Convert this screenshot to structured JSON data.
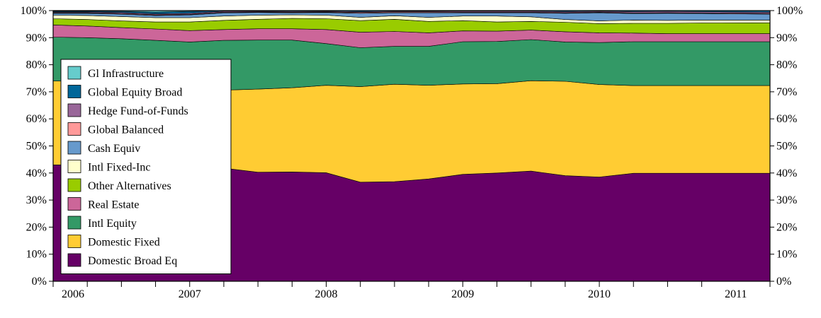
{
  "chart_data": {
    "type": "area",
    "stacked": true,
    "x": [
      2006.0,
      2006.25,
      2006.5,
      2006.75,
      2007.0,
      2007.25,
      2007.5,
      2007.75,
      2008.0,
      2008.25,
      2008.5,
      2008.75,
      2009.0,
      2009.25,
      2009.5,
      2009.75,
      2010.0,
      2010.25,
      2010.5,
      2010.75,
      2011.0
    ],
    "x_ticks": [
      "2006",
      "2007",
      "2008",
      "2009",
      "2010",
      "2011"
    ],
    "ylim": [
      0,
      100
    ],
    "y_ticks": [
      "0%",
      "10%",
      "20%",
      "30%",
      "40%",
      "50%",
      "60%",
      "70%",
      "80%",
      "90%",
      "100%"
    ],
    "y_axis_both_sides": true,
    "legend_position": "left",
    "series": [
      {
        "name": "Domestic Broad Eq",
        "color": "#660066",
        "values": [
          43,
          43,
          42.7,
          42.5,
          42.3,
          41.8,
          40.3,
          40.4,
          40.1,
          36.6,
          36.8,
          37.8,
          39.5,
          40.0,
          40.7,
          39.0,
          38.5,
          39.9,
          39.9,
          39.9,
          39.9
        ]
      },
      {
        "name": "Domestic Fixed",
        "color": "#FFCC33",
        "values": [
          31,
          30.8,
          30.7,
          30.3,
          29.8,
          28.8,
          30.7,
          31.1,
          32.3,
          35.3,
          36.0,
          34.6,
          33.4,
          33.0,
          33.4,
          34.9,
          34.2,
          32.4,
          32.4,
          32.4,
          32.4
        ]
      },
      {
        "name": "Intl Equity",
        "color": "#339966",
        "values": [
          16.2,
          16.2,
          16.2,
          16.2,
          16.3,
          18.4,
          18.1,
          17.6,
          15.4,
          14.4,
          14.0,
          14.4,
          15.6,
          15.6,
          15.2,
          14.5,
          15.5,
          16.2,
          16.2,
          16.2,
          16.2
        ]
      },
      {
        "name": "Real Estate",
        "color": "#CC6699",
        "values": [
          4.5,
          4.3,
          4.1,
          4.2,
          4.2,
          4.0,
          4.2,
          4.2,
          5.2,
          5.7,
          5.5,
          5.0,
          4.0,
          3.8,
          3.5,
          3.8,
          3.6,
          3.2,
          3.0,
          3.0,
          3.0
        ]
      },
      {
        "name": "Other Alternatives",
        "color": "#99CC00",
        "values": [
          2.3,
          2.4,
          2.5,
          2.6,
          3.2,
          3.4,
          3.5,
          3.8,
          4.0,
          4.3,
          4.5,
          4.2,
          3.8,
          3.4,
          3.2,
          3.5,
          3.4,
          3.6,
          3.8,
          3.9,
          4.0
        ]
      },
      {
        "name": "Intl Fixed-Inc",
        "color": "#FFFFCC",
        "values": [
          1.3,
          1.5,
          1.6,
          1.6,
          1.6,
          1.6,
          1.5,
          1.3,
          1.3,
          1.2,
          1.3,
          1.5,
          1.7,
          2.2,
          1.7,
          1.0,
          1.0,
          1.2,
          1.1,
          1.1,
          1.0
        ]
      },
      {
        "name": "Cash Equiv",
        "color": "#6699CC",
        "values": [
          0.7,
          0.8,
          0.9,
          0.8,
          1.0,
          1.2,
          1.0,
          0.8,
          1.0,
          1.5,
          1.1,
          1.7,
          1.2,
          1.2,
          1.5,
          2.3,
          3.0,
          2.4,
          2.6,
          2.4,
          2.2
        ]
      },
      {
        "name": "Global Balanced",
        "color": "#FF9999",
        "values": [
          0.2,
          0.2,
          0.2,
          0.2,
          0.2,
          0.2,
          0.2,
          0.2,
          0.2,
          0.3,
          0.3,
          0.3,
          0.2,
          0.2,
          0.2,
          0.2,
          0.2,
          0.2,
          0.2,
          0.2,
          0.2
        ]
      },
      {
        "name": "Hedge Fund-of-Funds",
        "color": "#996699",
        "values": [
          0.3,
          0.3,
          0.4,
          0.4,
          0.4,
          0.4,
          0.3,
          0.3,
          0.3,
          0.3,
          0.3,
          0.3,
          0.4,
          0.4,
          0.4,
          0.4,
          0.4,
          0.5,
          0.5,
          0.5,
          0.5
        ]
      },
      {
        "name": "Global Equity Broad",
        "color": "#006699",
        "values": [
          0.3,
          0.3,
          0.4,
          0.6,
          0.7,
          0.6,
          0.6,
          0.6,
          0.6,
          0.6,
          0.6,
          0.6,
          0.6,
          0.6,
          0.6,
          0.6,
          0.6,
          0.6,
          0.6,
          0.6,
          0.6
        ]
      },
      {
        "name": "Gl Infrastructure",
        "color": "#66CCCC",
        "values": [
          0.2,
          0.2,
          0.3,
          0.6,
          0.6,
          0.1,
          0.1,
          0.1,
          0.2,
          0.2,
          0.2,
          0.2,
          0.2,
          0.2,
          0.2,
          0.1,
          0.1,
          0.1,
          0.1,
          0.2,
          0.2
        ]
      }
    ]
  }
}
